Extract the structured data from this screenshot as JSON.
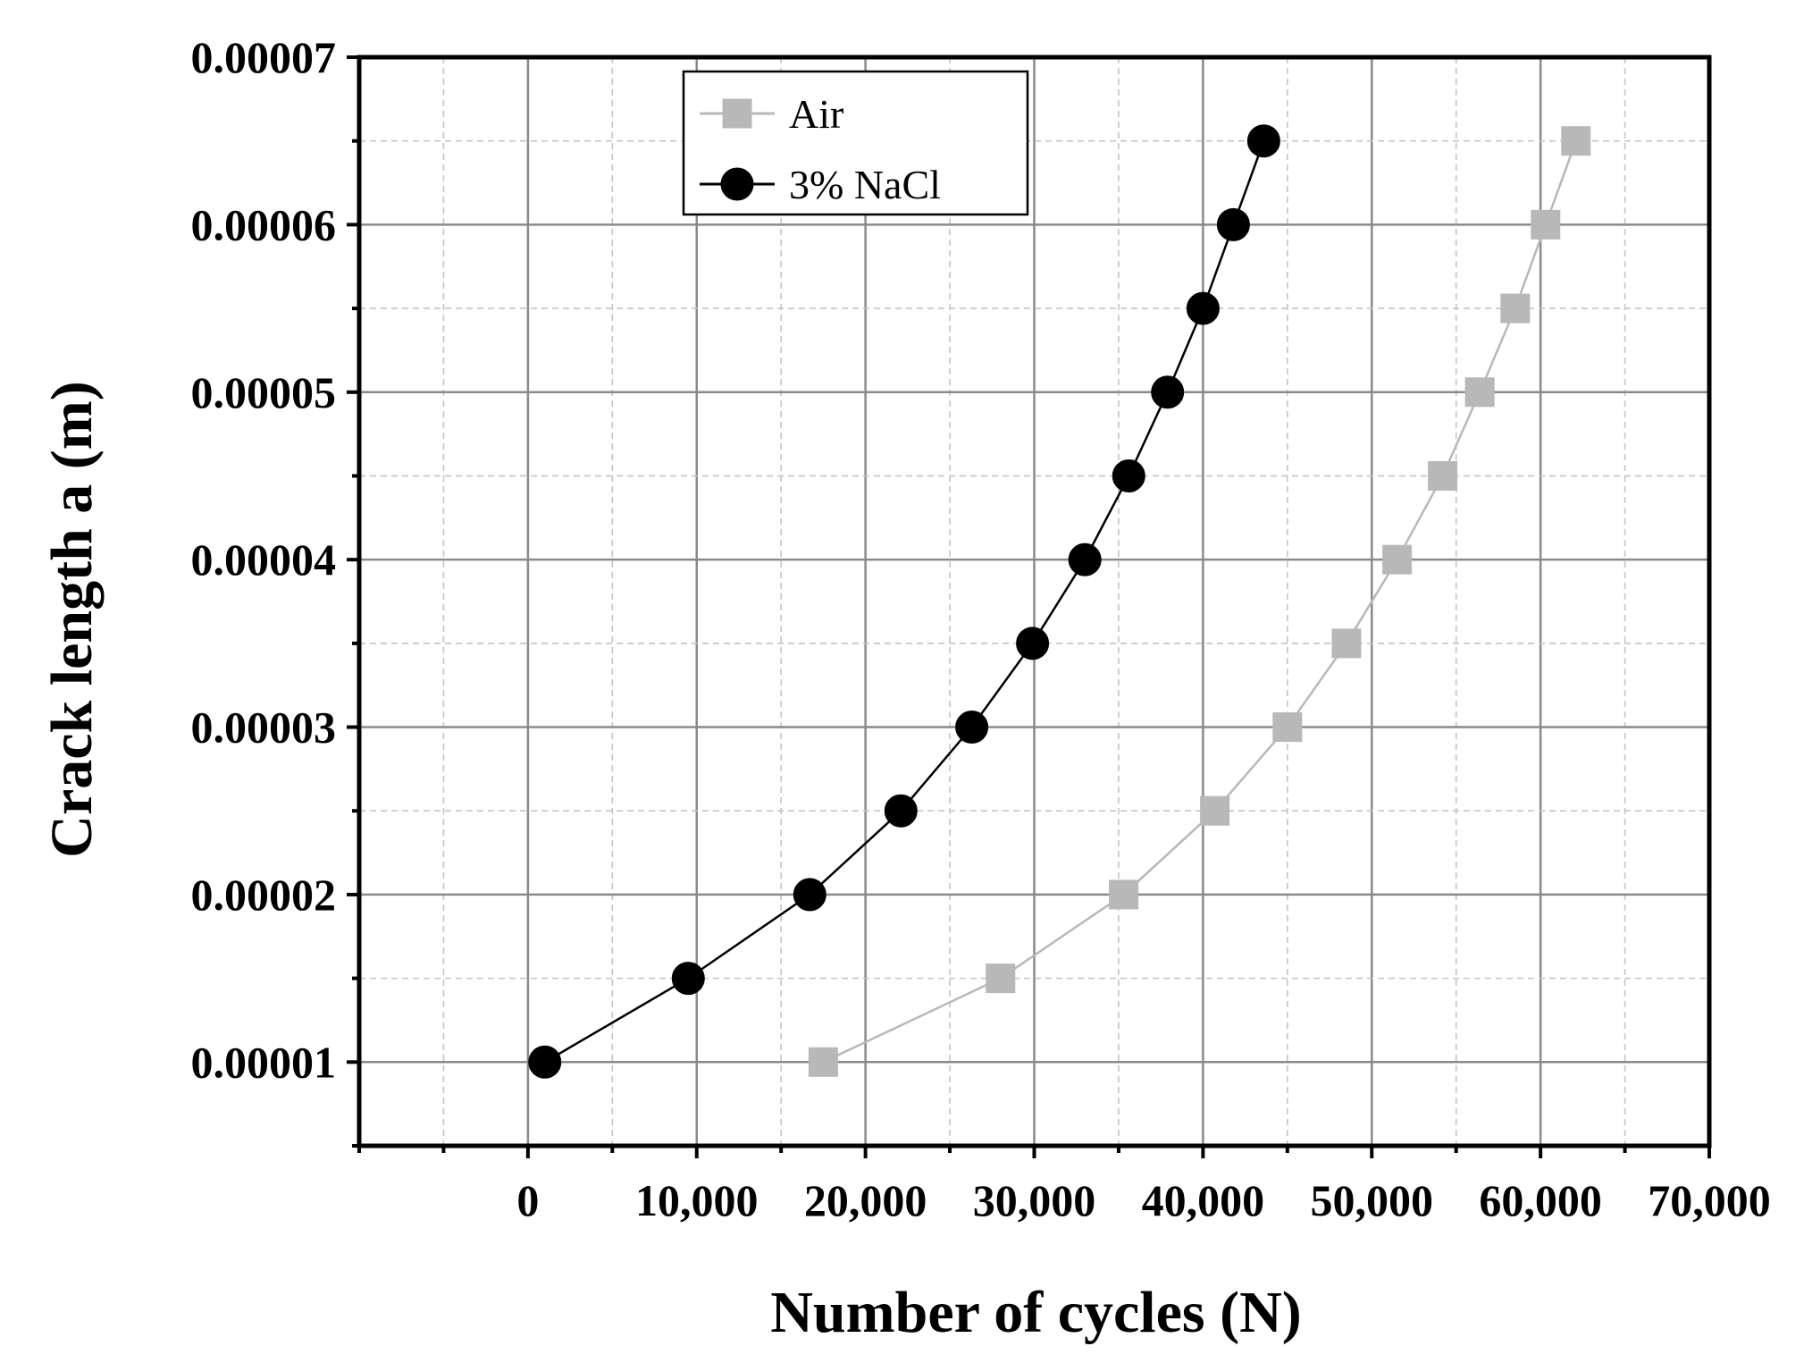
{
  "chart_data": {
    "type": "line",
    "title": "",
    "xlabel": "Number of cycles (N)",
    "ylabel": "Crack length a (m)",
    "xlim": [
      -10000,
      70000
    ],
    "ylim": [
      5e-06,
      7e-05
    ],
    "grid": true,
    "legend_position": "top-center",
    "x_ticks": [
      0,
      10000,
      20000,
      30000,
      40000,
      50000,
      60000,
      70000
    ],
    "x_tick_labels": [
      "0",
      "10,000",
      "20,000",
      "30,000",
      "40,000",
      "50,000",
      "60,000",
      "70,000"
    ],
    "y_ticks": [
      1e-05,
      2e-05,
      3e-05,
      4e-05,
      5e-05,
      6e-05,
      7e-05
    ],
    "y_tick_labels": [
      "0.00001",
      "0.00002",
      "0.00003",
      "0.00004",
      "0.00005",
      "0.00006",
      "0.00007"
    ],
    "series": [
      {
        "name": "Air",
        "marker": "square",
        "color": "#b8b8b8",
        "x": [
          17500,
          28000,
          35300,
          40700,
          45000,
          48500,
          51500,
          54200,
          56400,
          58500,
          60300,
          62100
        ],
        "y": [
          1e-05,
          1.5e-05,
          2e-05,
          2.5e-05,
          3e-05,
          3.5e-05,
          4e-05,
          4.5e-05,
          5e-05,
          5.5e-05,
          6e-05,
          6.5e-05
        ]
      },
      {
        "name": "3% NaCl",
        "marker": "circle",
        "color": "#000000",
        "x": [
          1000,
          9500,
          16700,
          22100,
          26300,
          29900,
          33000,
          35600,
          37900,
          40000,
          41800,
          43600
        ],
        "y": [
          1e-05,
          1.5e-05,
          2e-05,
          2.5e-05,
          3e-05,
          3.5e-05,
          4e-05,
          4.5e-05,
          5e-05,
          5.5e-05,
          6e-05,
          6.5e-05
        ]
      }
    ]
  }
}
